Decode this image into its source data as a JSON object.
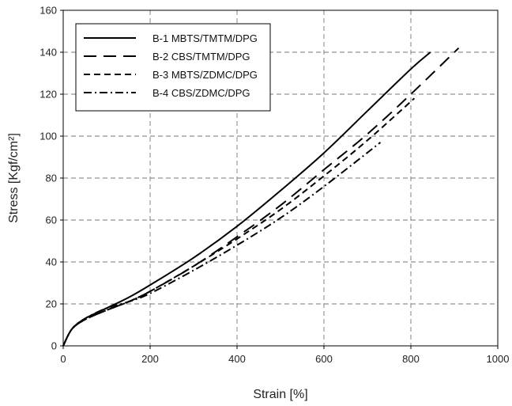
{
  "chart_data": {
    "type": "line",
    "xlabel": "Strain [%]",
    "ylabel": "Stress [Kgf/cm²]",
    "xlim": [
      0,
      1000
    ],
    "ylim": [
      0,
      160
    ],
    "x_ticks": [
      0,
      200,
      400,
      600,
      800,
      1000
    ],
    "y_ticks": [
      0,
      20,
      40,
      60,
      80,
      100,
      120,
      140,
      160
    ],
    "grid": true,
    "legend_position": "top-left",
    "series": [
      {
        "name": "B-1 MBTS/TMTM/DPG",
        "dash": "solid",
        "x": [
          0,
          20,
          50,
          100,
          150,
          200,
          300,
          400,
          500,
          600,
          700,
          800,
          845
        ],
        "y": [
          0,
          8,
          13,
          18,
          23,
          29,
          42,
          57,
          74,
          92,
          112,
          132,
          140
        ]
      },
      {
        "name": "B-2 CBS/TMTM/DPG",
        "dash": "long-dash",
        "x": [
          0,
          20,
          50,
          100,
          150,
          200,
          300,
          400,
          500,
          600,
          700,
          800,
          910
        ],
        "y": [
          0,
          8,
          12.5,
          17,
          21,
          26,
          38,
          52,
          67,
          84,
          101,
          120,
          142
        ]
      },
      {
        "name": "B-3 MBTS/ZDMC/DPG",
        "dash": "short-dash",
        "x": [
          0,
          20,
          50,
          100,
          150,
          200,
          300,
          400,
          500,
          600,
          700,
          808
        ],
        "y": [
          0,
          8,
          12.5,
          17,
          21,
          26,
          38,
          51,
          65,
          81,
          98,
          118
        ]
      },
      {
        "name": "B-4 CBS/ZDMC/DPG",
        "dash": "dash-dot",
        "x": [
          0,
          20,
          50,
          100,
          150,
          200,
          300,
          400,
          500,
          600,
          730
        ],
        "y": [
          0,
          8,
          13,
          18,
          21,
          25,
          36,
          48,
          61,
          76,
          97
        ]
      }
    ]
  }
}
